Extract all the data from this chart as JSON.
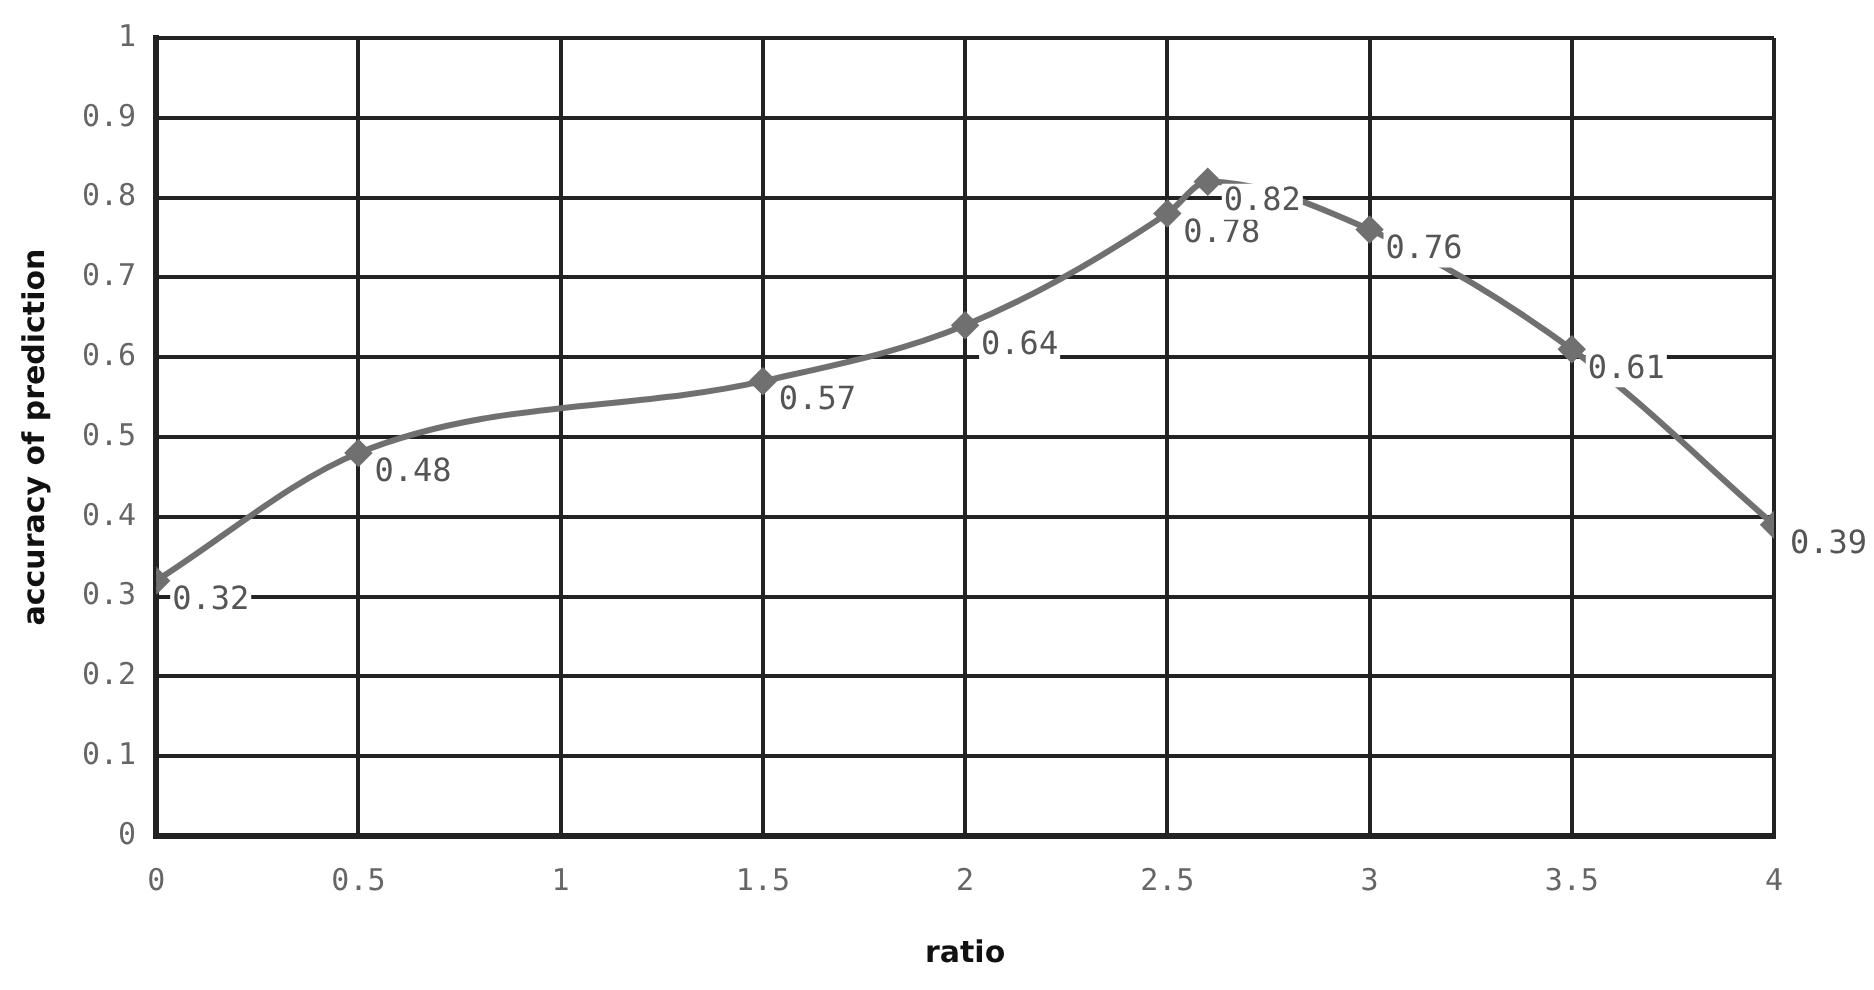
{
  "chart_data": {
    "type": "line",
    "xlabel": "ratio",
    "ylabel": "accuracy of prediction",
    "x": [
      0,
      0.5,
      1.5,
      2,
      2.5,
      2.6,
      3,
      3.5,
      4
    ],
    "series": [
      {
        "color": "#707070",
        "values": [
          0.32,
          0.48,
          0.57,
          0.64,
          0.78,
          0.82,
          0.76,
          0.61,
          0.39
        ]
      }
    ],
    "xlim": [
      0,
      4
    ],
    "xticks": [
      0,
      0.5,
      1,
      1.5,
      2,
      2.5,
      3,
      3.5,
      4
    ],
    "ylim": [
      0,
      1
    ],
    "yticks": [
      0,
      0.1,
      0.2,
      0.3,
      0.4,
      0.5,
      0.6,
      0.7,
      0.8,
      0.9,
      1
    ],
    "grid": true,
    "legend": false,
    "marker": "diamond",
    "line_style": "solid",
    "data_labels": true
  }
}
